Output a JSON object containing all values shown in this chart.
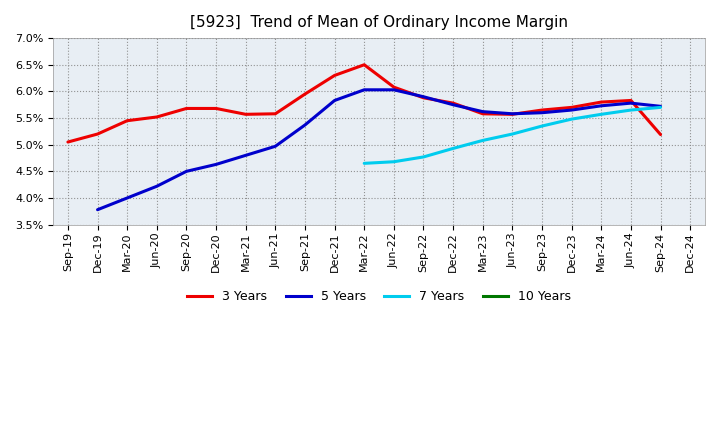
{
  "title": "[5923]  Trend of Mean of Ordinary Income Margin",
  "xlabels": [
    "Sep-19",
    "Dec-19",
    "Mar-20",
    "Jun-20",
    "Sep-20",
    "Dec-20",
    "Mar-21",
    "Jun-21",
    "Sep-21",
    "Dec-21",
    "Mar-22",
    "Jun-22",
    "Sep-22",
    "Dec-22",
    "Mar-23",
    "Jun-23",
    "Sep-23",
    "Dec-23",
    "Mar-24",
    "Jun-24",
    "Sep-24",
    "Dec-24"
  ],
  "ylim": [
    0.035,
    0.07
  ],
  "yticks": [
    0.035,
    0.04,
    0.045,
    0.05,
    0.055,
    0.06,
    0.065,
    0.07
  ],
  "series_order": [
    "3 Years",
    "5 Years",
    "7 Years",
    "10 Years"
  ],
  "series": {
    "3 Years": {
      "color": "#EE0000",
      "linewidth": 2.2,
      "data_x": [
        0,
        1,
        2,
        3,
        4,
        5,
        6,
        7,
        8,
        9,
        10,
        11,
        12,
        13,
        14,
        15,
        16,
        17,
        18,
        19,
        20
      ],
      "data_y": [
        0.0505,
        0.052,
        0.0545,
        0.0552,
        0.0568,
        0.0568,
        0.0557,
        0.0558,
        0.0595,
        0.063,
        0.065,
        0.0608,
        0.0588,
        0.0578,
        0.0558,
        0.0557,
        0.0565,
        0.057,
        0.058,
        0.0583,
        0.0519
      ]
    },
    "5 Years": {
      "color": "#0000CC",
      "linewidth": 2.2,
      "data_x": [
        1,
        2,
        3,
        4,
        5,
        6,
        7,
        8,
        9,
        10,
        11,
        12,
        13,
        14,
        15,
        16,
        17,
        18,
        19,
        20
      ],
      "data_y": [
        0.0378,
        0.04,
        0.0422,
        0.045,
        0.0463,
        0.048,
        0.0497,
        0.0537,
        0.0583,
        0.0603,
        0.0603,
        0.059,
        0.0575,
        0.0562,
        0.0558,
        0.056,
        0.0565,
        0.0573,
        0.0578,
        0.0572
      ]
    },
    "7 Years": {
      "color": "#00CCEE",
      "linewidth": 2.2,
      "data_x": [
        10,
        11,
        12,
        13,
        14,
        15,
        16,
        17,
        18,
        19,
        20
      ],
      "data_y": [
        0.0465,
        0.0468,
        0.0477,
        0.0493,
        0.0508,
        0.052,
        0.0535,
        0.0548,
        0.0557,
        0.0565,
        0.057
      ]
    },
    "10 Years": {
      "color": "#007700",
      "linewidth": 2.2,
      "data_x": [],
      "data_y": []
    }
  },
  "legend_labels": [
    "3 Years",
    "5 Years",
    "7 Years",
    "10 Years"
  ],
  "legend_colors": [
    "#EE0000",
    "#0000CC",
    "#00CCEE",
    "#007700"
  ],
  "background_color": "#FFFFFF",
  "plot_bg_color": "#E8EEF4",
  "grid_color": "#AAAAAA",
  "title_fontsize": 11,
  "title_fontweight": "normal",
  "tick_fontsize": 8
}
